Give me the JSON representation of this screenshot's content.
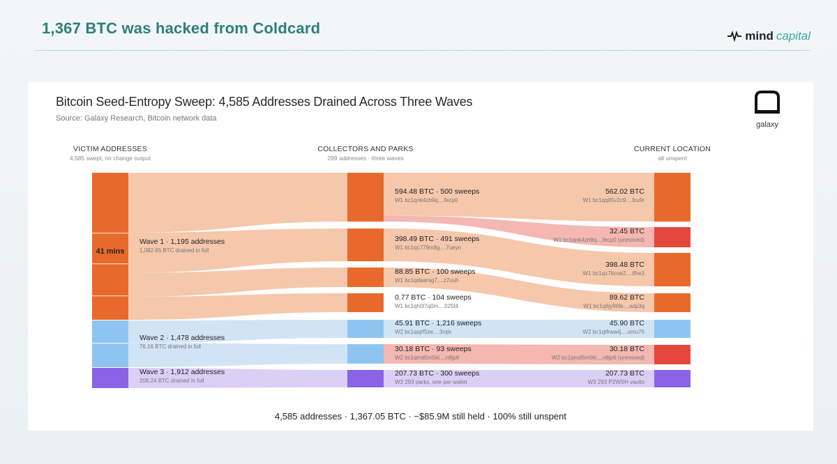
{
  "headline": "1,367 BTC was hacked from Coldcard",
  "brand": {
    "name": "mind",
    "accent": "capital"
  },
  "chart": {
    "title": "Bitcoin Seed-Entropy Sweep: 4,585 Addresses Drained Across Three Waves",
    "source": "Source: Galaxy Research, Bitcoin network data",
    "logo_label": "galaxy",
    "columns": {
      "victims": {
        "title": "VICTIM ADDRESSES",
        "subtitle": "4,585 swept, no change output"
      },
      "collectors": {
        "title": "COLLECTORS AND PARKS",
        "subtitle": "299 addresses · three waves"
      },
      "location": {
        "title": "CURRENT LOCATION",
        "subtitle": "all unspent"
      }
    },
    "duration_label": "41 mins",
    "footer": "4,585 addresses · 1,367.05 BTC · ~$85.9M still held · 100% still unspent"
  },
  "chart_data": {
    "type": "sankey",
    "colors": {
      "wave1": "#e9692c",
      "wave2": "#8ec5f0",
      "wave3": "#8a63e6",
      "unmoved": "#e4483c"
    },
    "waves": [
      {
        "id": "W1",
        "label": "Wave 1 · 1,195 addresses",
        "sublabel": "1,082.65 BTC drained in full",
        "btc": 1082.65,
        "addresses": 1195
      },
      {
        "id": "W2",
        "label": "Wave 2 · 1,478 addresses",
        "sublabel": "76.16 BTC drained in full",
        "btc": 76.16,
        "addresses": 1478
      },
      {
        "id": "W3",
        "label": "Wave 3 · 1,912 addresses",
        "sublabel": "208.24 BTC drained in full",
        "btc": 208.24,
        "addresses": 1912
      }
    ],
    "collectors": [
      {
        "wave": "W1",
        "btc_label": "594.48 BTC · 500 sweeps",
        "address": "W1  bc1qnk4zh9q....fecp0",
        "btc": 594.48,
        "sweeps": 500
      },
      {
        "wave": "W1",
        "btc_label": "398.49 BTC · 491 sweeps",
        "address": "W1  bc1qc779m8g....7ueyn",
        "btc": 398.49,
        "sweeps": 491
      },
      {
        "wave": "W1",
        "btc_label": "88.85 BTC · 100 sweeps",
        "address": "W1  bc1qdaarag7....z7uuh",
        "btc": 88.85,
        "sweeps": 100
      },
      {
        "wave": "W1",
        "btc_label": "0.77 BTC · 104 sweeps",
        "address": "W1  bc1qh0l7q0m....025t4",
        "btc": 0.77,
        "sweeps": 104
      },
      {
        "wave": "W2",
        "btc_label": "45.91 BTC · 1,216 sweeps",
        "address": "W2  bc1qsjrf5ze....3rqlx",
        "btc": 45.91,
        "sweeps": 1216
      },
      {
        "wave": "W2",
        "btc_label": "30.18 BTC · 93 sweeps",
        "address": "W2  bc1qmd5m5kl....n8jp6",
        "btc": 30.18,
        "sweeps": 93
      },
      {
        "wave": "W3",
        "btc_label": "207.73 BTC · 300 sweeps",
        "address": "W3  293 parks, one per wallet",
        "btc": 207.73,
        "sweeps": 300
      }
    ],
    "destinations": [
      {
        "wave": "W1",
        "btc_label": "562.02 BTC",
        "address": "W1  bc1qq85v2c9....fcu9r",
        "btc": 562.02,
        "unmoved": false
      },
      {
        "wave": "W1",
        "btc_label": "32.45 BTC",
        "address": "W1  bc1qnk4zh9q....fecp0  (unmoved)",
        "btc": 32.45,
        "unmoved": true
      },
      {
        "wave": "W1",
        "btc_label": "398.48 BTC",
        "address": "W1  bc1qx76coe2....tfhe3",
        "btc": 398.48,
        "unmoved": false
      },
      {
        "wave": "W1",
        "btc_label": "89.62 BTC",
        "address": "W1  bc1q6jy96fe....wtp3q",
        "btc": 89.62,
        "unmoved": false
      },
      {
        "wave": "W2",
        "btc_label": "45.90 BTC",
        "address": "W2  bc1qtfrwa4j....umu75",
        "btc": 45.9,
        "unmoved": false
      },
      {
        "wave": "W2",
        "btc_label": "30.18 BTC",
        "address": "W2  bc1qmd5m5kl....n8jp6  (unmoved)",
        "btc": 30.18,
        "unmoved": true
      },
      {
        "wave": "W3",
        "btc_label": "207.73 BTC",
        "address": "W3  293 P2WSH vaults",
        "btc": 207.73,
        "unmoved": false
      }
    ]
  }
}
